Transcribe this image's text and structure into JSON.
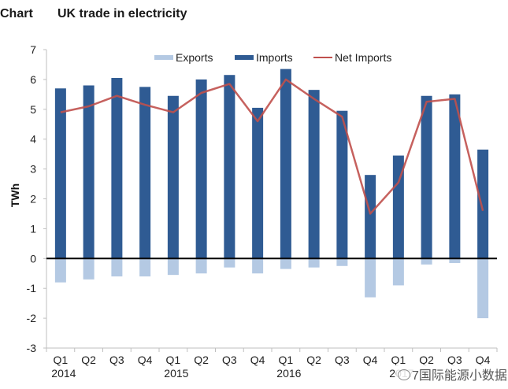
{
  "header": {
    "label": "Chart",
    "title": "UK trade in electricity"
  },
  "legend": [
    {
      "name": "Exports",
      "color": "#b4c9e3",
      "kind": "bar"
    },
    {
      "name": "Imports",
      "color": "#2f5b93",
      "kind": "bar"
    },
    {
      "name": "Net Imports",
      "color": "#c0504d",
      "kind": "line"
    }
  ],
  "watermark": {
    "text": "国际能源小数据",
    "prefix": "7"
  },
  "chart_data": {
    "type": "bar",
    "title": "UK trade in electricity",
    "xlabel": "",
    "ylabel": "TWh",
    "ylim": [
      -3,
      7
    ],
    "yticks": [
      7,
      6,
      5,
      4,
      3,
      2,
      1,
      0,
      -1,
      -2,
      -3
    ],
    "grid": false,
    "legend_position": "top",
    "categories": [
      "Q1 2014",
      "Q2 2014",
      "Q3 2014",
      "Q4 2014",
      "Q1 2015",
      "Q2 2015",
      "Q3 2015",
      "Q4 2015",
      "Q1 2016",
      "Q2 2016",
      "Q3 2016",
      "Q4 2016",
      "Q1 2017",
      "Q2 2017",
      "Q3 2017",
      "Q4 2017"
    ],
    "tick_labels": [
      {
        "q": "Q1",
        "year": "2014"
      },
      {
        "q": "Q2",
        "year": ""
      },
      {
        "q": "Q3",
        "year": ""
      },
      {
        "q": "Q4",
        "year": ""
      },
      {
        "q": "Q1",
        "year": "2015"
      },
      {
        "q": "Q2",
        "year": ""
      },
      {
        "q": "Q3",
        "year": ""
      },
      {
        "q": "Q4",
        "year": ""
      },
      {
        "q": "Q1",
        "year": "2016"
      },
      {
        "q": "Q2",
        "year": ""
      },
      {
        "q": "Q3",
        "year": ""
      },
      {
        "q": "Q4",
        "year": ""
      },
      {
        "q": "Q1",
        "year": "2017"
      },
      {
        "q": "Q2",
        "year": ""
      },
      {
        "q": "Q3",
        "year": ""
      },
      {
        "q": "Q4",
        "year": ""
      }
    ],
    "series": [
      {
        "name": "Exports",
        "type": "bar",
        "color": "#b4c9e3",
        "values": [
          -0.8,
          -0.7,
          -0.6,
          -0.6,
          -0.55,
          -0.5,
          -0.3,
          -0.5,
          -0.35,
          -0.3,
          -0.25,
          -1.3,
          -0.9,
          -0.2,
          -0.15,
          -2.0
        ]
      },
      {
        "name": "Imports",
        "type": "bar",
        "color": "#2f5b93",
        "values": [
          5.7,
          5.8,
          6.05,
          5.75,
          5.45,
          6.0,
          6.15,
          5.05,
          6.35,
          5.65,
          4.95,
          2.8,
          3.45,
          5.45,
          5.5,
          3.65
        ]
      },
      {
        "name": "Net Imports",
        "type": "line",
        "color": "#c0504d",
        "values": [
          4.9,
          5.1,
          5.45,
          5.15,
          4.9,
          5.55,
          5.85,
          4.6,
          6.0,
          5.35,
          4.75,
          1.5,
          2.55,
          5.25,
          5.35,
          1.6
        ]
      }
    ]
  }
}
